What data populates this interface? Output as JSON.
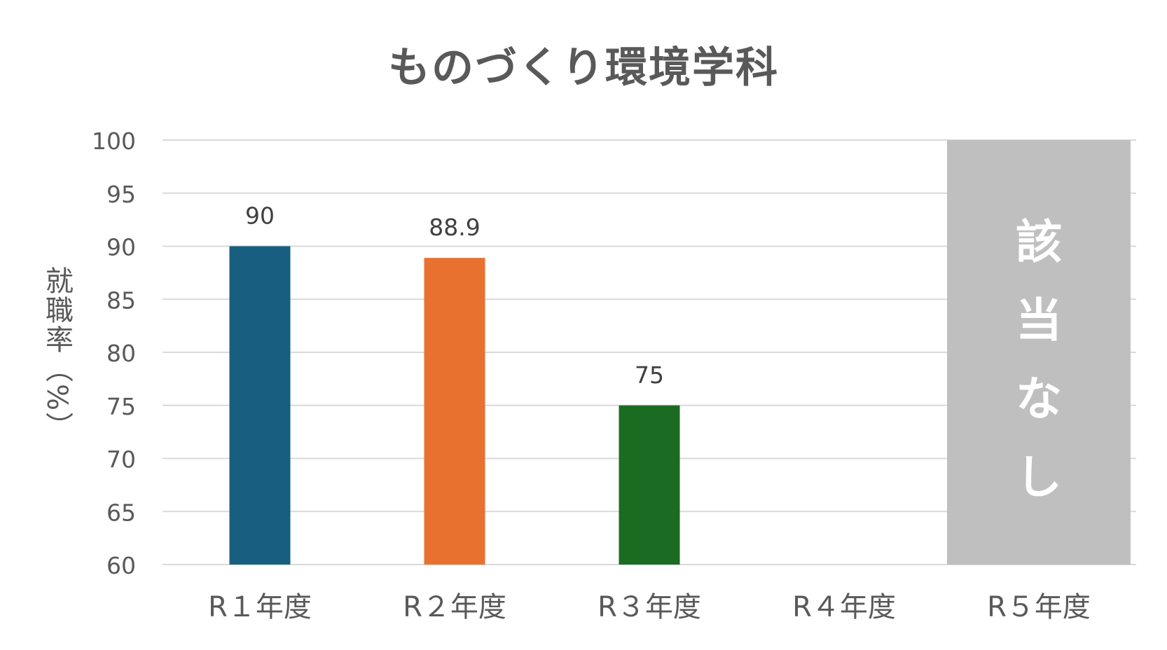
{
  "chart_data": {
    "type": "bar",
    "title": "ものづくり環境学科",
    "xlabel": "",
    "ylabel": "就職率（%）",
    "ylim": [
      60,
      100
    ],
    "yticks": [
      60,
      65,
      70,
      75,
      80,
      85,
      90,
      95,
      100
    ],
    "grid": true,
    "categories": [
      "R１年度",
      "R２年度",
      "R３年度",
      "R４年度",
      "R５年度"
    ],
    "values": [
      90,
      88.9,
      75,
      null,
      null
    ],
    "data_labels": [
      "90",
      "88.9",
      "75",
      "",
      ""
    ],
    "bar_colors": [
      "#175E80",
      "#E87130",
      "#1C6B23",
      "#ffffff",
      "#BFBFBF"
    ],
    "annotation": {
      "category": "R５年度",
      "text": [
        "該",
        "当",
        "な",
        "し"
      ],
      "fill": "#BFBFBF",
      "text_color": "#ffffff"
    }
  }
}
